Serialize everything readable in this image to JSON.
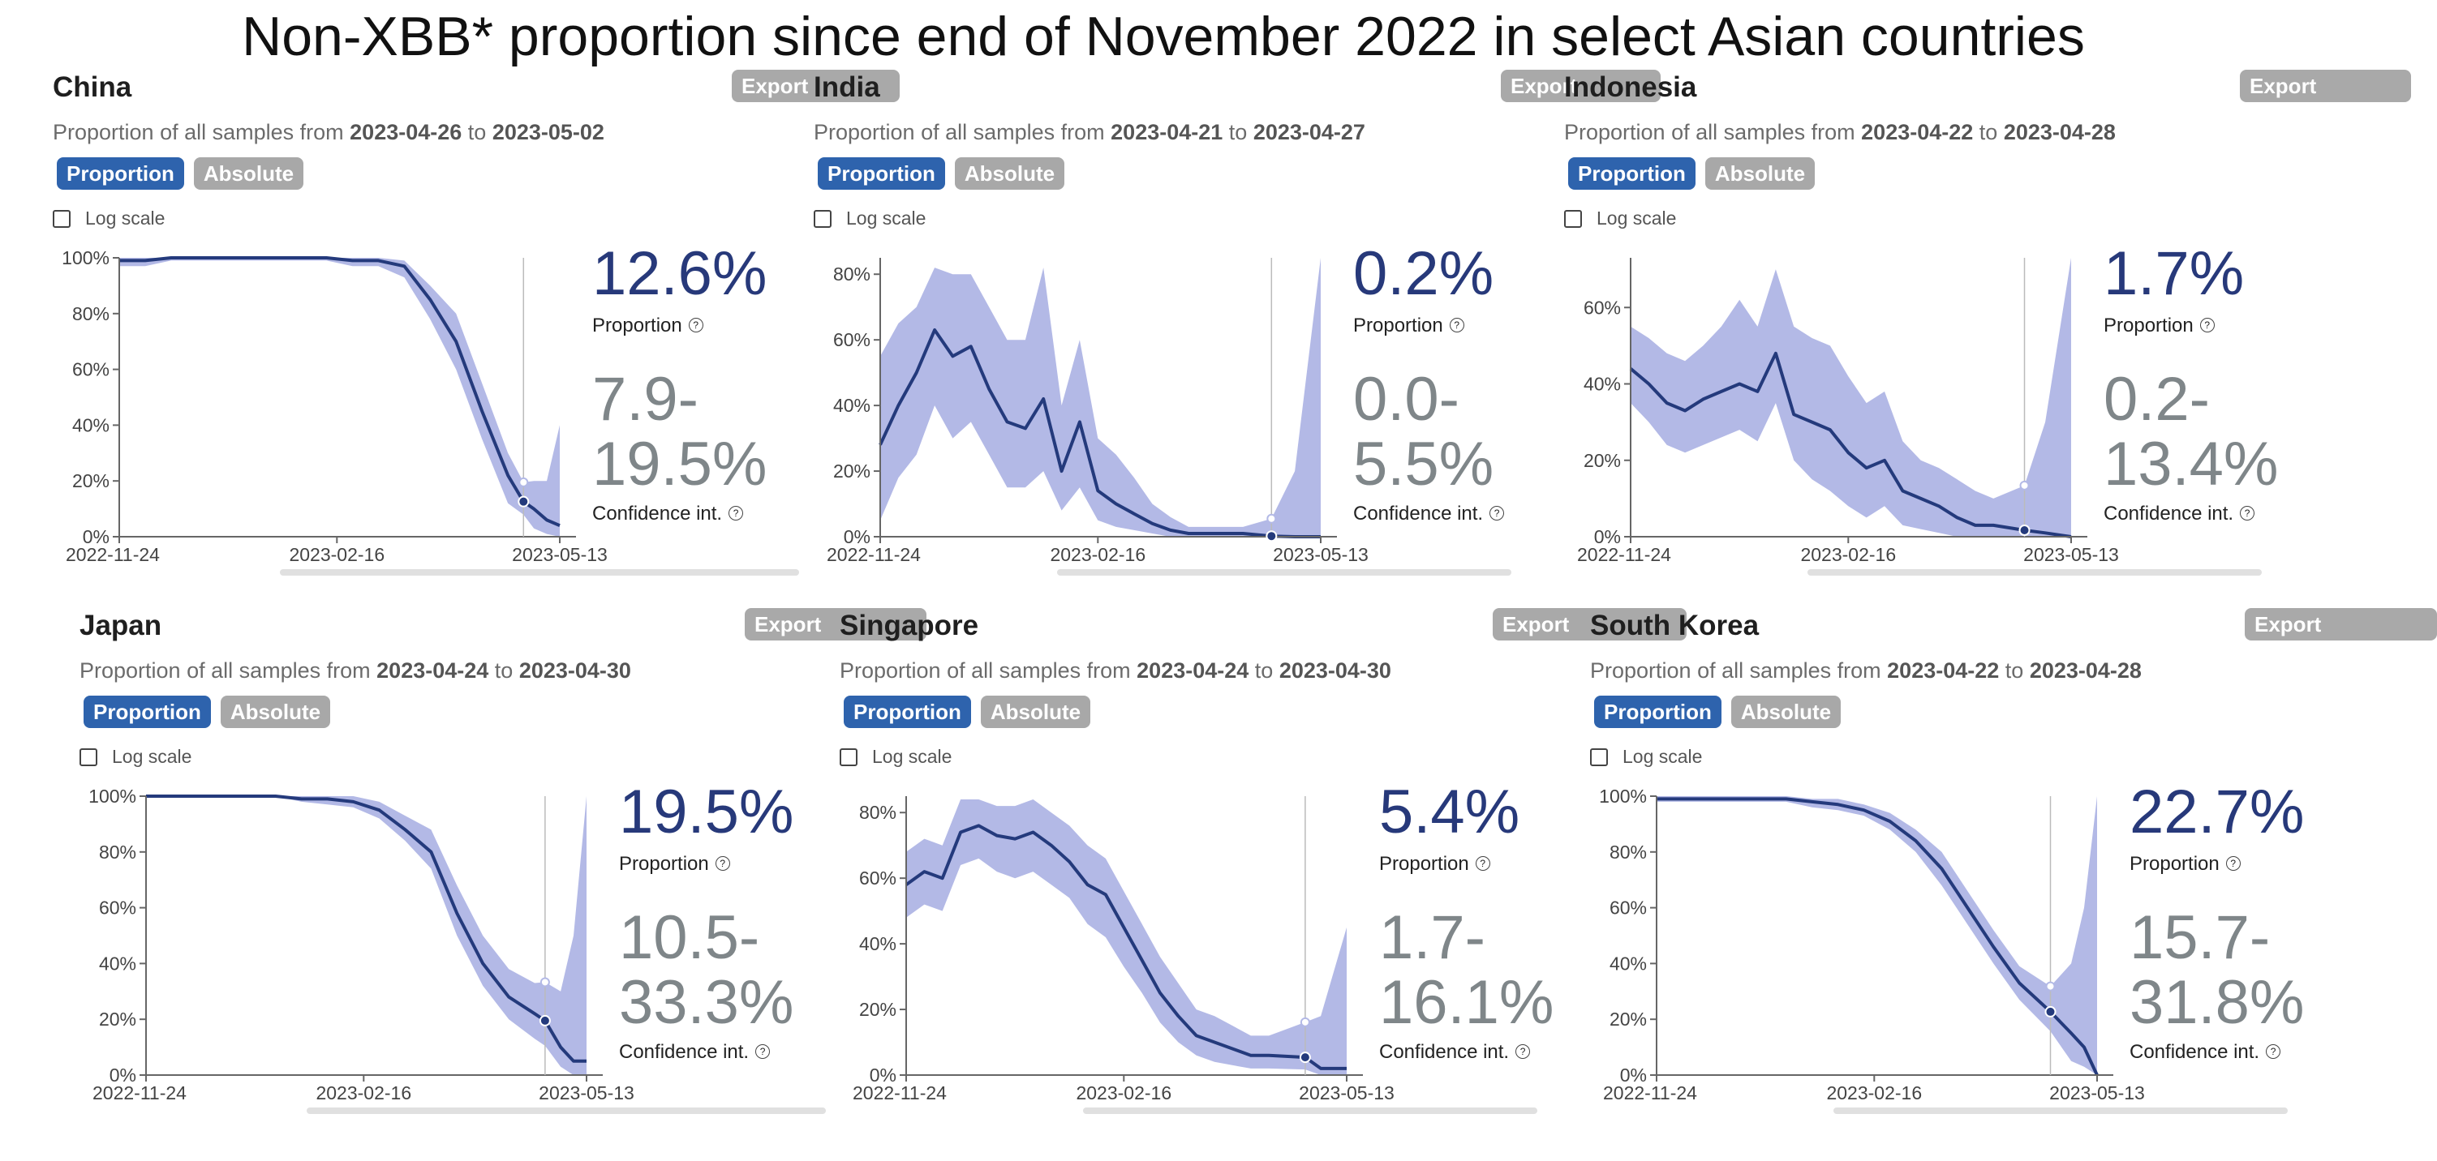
{
  "title": "Non-XBB* proportion since end of November 2022 in select Asian countries",
  "ui": {
    "proportion_btn": "Proportion",
    "absolute_btn": "Absolute",
    "export_btn": "Export",
    "log_scale": "Log scale",
    "date_prefix": "Proportion of all samples from",
    "date_to": "to",
    "proportion_label": "Proportion",
    "ci_label": "Confidence int."
  },
  "chart_data": [
    {
      "type": "line",
      "title": "China",
      "date_from": "2023-04-26",
      "date_to": "2023-05-02",
      "proportion": "12.6%",
      "ci_low": "7.9-",
      "ci_high": "19.5%",
      "ylim": [
        0,
        100
      ],
      "yticks": [
        "0%",
        "20%",
        "40%",
        "60%",
        "80%",
        "100%"
      ],
      "xticks": [
        "2022-11-24",
        "2023-02-16",
        "2023-05-13"
      ],
      "x": [
        "2022-11-24",
        "2022-12-04",
        "2022-12-14",
        "2022-12-24",
        "2023-01-03",
        "2023-01-13",
        "2023-01-23",
        "2023-02-02",
        "2023-02-12",
        "2023-02-22",
        "2023-03-04",
        "2023-03-14",
        "2023-03-24",
        "2023-04-03",
        "2023-04-13",
        "2023-04-23",
        "2023-04-29",
        "2023-05-03",
        "2023-05-08",
        "2023-05-13"
      ],
      "values": [
        99,
        99,
        100,
        100,
        100,
        100,
        100,
        100,
        100,
        99,
        99,
        97,
        85,
        70,
        45,
        22,
        12.6,
        10,
        6,
        4
      ],
      "lower": [
        97,
        97,
        99,
        99,
        99,
        99,
        99,
        99,
        99,
        97,
        97,
        93,
        78,
        60,
        35,
        12,
        7.9,
        3,
        1,
        0
      ],
      "upper": [
        100,
        100,
        100,
        100,
        100,
        100,
        100,
        100,
        100,
        100,
        100,
        99,
        90,
        80,
        55,
        30,
        19.5,
        20,
        20,
        40
      ],
      "marker": "2023-04-29"
    },
    {
      "type": "line",
      "title": "India",
      "date_from": "2023-04-21",
      "date_to": "2023-04-27",
      "proportion": "0.2%",
      "ci_low": "0.0-",
      "ci_high": "5.5%",
      "ylim": [
        0,
        85
      ],
      "yticks": [
        "0%",
        "20%",
        "40%",
        "60%",
        "80%"
      ],
      "xticks": [
        "2022-11-24",
        "2023-02-16",
        "2023-05-13"
      ],
      "x": [
        "2022-11-24",
        "2022-12-01",
        "2022-12-08",
        "2022-12-15",
        "2022-12-22",
        "2022-12-29",
        "2023-01-05",
        "2023-01-12",
        "2023-01-19",
        "2023-01-26",
        "2023-02-02",
        "2023-02-09",
        "2023-02-16",
        "2023-02-23",
        "2023-03-02",
        "2023-03-09",
        "2023-03-16",
        "2023-03-23",
        "2023-03-30",
        "2023-04-06",
        "2023-04-13",
        "2023-04-24",
        "2023-05-03",
        "2023-05-13"
      ],
      "values": [
        28,
        40,
        50,
        63,
        55,
        58,
        45,
        35,
        33,
        42,
        20,
        35,
        14,
        10,
        7,
        4,
        2,
        1,
        1,
        1,
        1,
        0.2,
        0,
        0
      ],
      "lower": [
        5,
        18,
        25,
        40,
        30,
        35,
        25,
        15,
        15,
        20,
        8,
        15,
        5,
        3,
        2,
        1,
        0,
        0,
        0,
        0,
        0,
        0,
        0,
        0
      ],
      "upper": [
        55,
        65,
        70,
        82,
        80,
        80,
        70,
        60,
        60,
        82,
        40,
        60,
        30,
        25,
        18,
        10,
        6,
        3,
        3,
        3,
        3,
        5.5,
        20,
        85
      ],
      "marker": "2023-04-24"
    },
    {
      "type": "line",
      "title": "Indonesia",
      "date_from": "2023-04-22",
      "date_to": "2023-04-28",
      "proportion": "1.7%",
      "ci_low": "0.2-",
      "ci_high": "13.4%",
      "ylim": [
        0,
        73
      ],
      "yticks": [
        "0%",
        "20%",
        "40%",
        "60%"
      ],
      "xticks": [
        "2022-11-24",
        "2023-02-16",
        "2023-05-13"
      ],
      "x": [
        "2022-11-24",
        "2022-12-01",
        "2022-12-08",
        "2022-12-15",
        "2022-12-22",
        "2022-12-29",
        "2023-01-05",
        "2023-01-12",
        "2023-01-19",
        "2023-01-26",
        "2023-02-02",
        "2023-02-09",
        "2023-02-16",
        "2023-02-23",
        "2023-03-02",
        "2023-03-09",
        "2023-03-16",
        "2023-03-23",
        "2023-03-30",
        "2023-04-06",
        "2023-04-13",
        "2023-04-25",
        "2023-05-03",
        "2023-05-13"
      ],
      "values": [
        44,
        40,
        35,
        33,
        36,
        38,
        40,
        38,
        48,
        32,
        30,
        28,
        22,
        18,
        20,
        12,
        10,
        8,
        5,
        3,
        3,
        1.7,
        1,
        0
      ],
      "lower": [
        35,
        30,
        24,
        22,
        24,
        26,
        28,
        25,
        35,
        20,
        15,
        12,
        8,
        5,
        8,
        3,
        2,
        1,
        0,
        0,
        0,
        0.2,
        0,
        0
      ],
      "upper": [
        55,
        52,
        48,
        46,
        50,
        55,
        62,
        55,
        70,
        55,
        52,
        50,
        42,
        35,
        38,
        25,
        20,
        18,
        15,
        12,
        10,
        13.4,
        30,
        73
      ],
      "marker": "2023-04-25"
    },
    {
      "type": "line",
      "title": "Japan",
      "date_from": "2023-04-24",
      "date_to": "2023-04-30",
      "proportion": "19.5%",
      "ci_low": "10.5-",
      "ci_high": "33.3%",
      "ylim": [
        0,
        100
      ],
      "yticks": [
        "0%",
        "20%",
        "40%",
        "60%",
        "80%",
        "100%"
      ],
      "xticks": [
        "2022-11-24",
        "2023-02-16",
        "2023-05-13"
      ],
      "x": [
        "2022-11-24",
        "2022-12-04",
        "2022-12-14",
        "2022-12-24",
        "2023-01-03",
        "2023-01-13",
        "2023-01-23",
        "2023-02-02",
        "2023-02-12",
        "2023-02-22",
        "2023-03-04",
        "2023-03-14",
        "2023-03-24",
        "2023-04-03",
        "2023-04-13",
        "2023-04-23",
        "2023-04-27",
        "2023-05-03",
        "2023-05-08",
        "2023-05-13"
      ],
      "values": [
        100,
        100,
        100,
        100,
        100,
        100,
        99,
        99,
        98,
        95,
        88,
        80,
        58,
        40,
        28,
        22,
        19.5,
        10,
        5,
        5
      ],
      "lower": [
        100,
        100,
        100,
        100,
        100,
        100,
        98,
        97,
        96,
        92,
        84,
        74,
        50,
        32,
        20,
        13,
        10.5,
        3,
        0,
        0
      ],
      "upper": [
        100,
        100,
        100,
        100,
        100,
        100,
        100,
        100,
        100,
        98,
        93,
        88,
        68,
        50,
        38,
        33,
        33.3,
        30,
        50,
        100
      ],
      "marker": "2023-04-27"
    },
    {
      "type": "line",
      "title": "Singapore",
      "date_from": "2023-04-24",
      "date_to": "2023-04-30",
      "proportion": "5.4%",
      "ci_low": "1.7-",
      "ci_high": "16.1%",
      "ylim": [
        0,
        85
      ],
      "yticks": [
        "0%",
        "20%",
        "40%",
        "60%",
        "80%"
      ],
      "xticks": [
        "2022-11-24",
        "2023-02-16",
        "2023-05-13"
      ],
      "x": [
        "2022-11-24",
        "2022-12-01",
        "2022-12-08",
        "2022-12-15",
        "2022-12-22",
        "2022-12-29",
        "2023-01-05",
        "2023-01-12",
        "2023-01-19",
        "2023-01-26",
        "2023-02-02",
        "2023-02-09",
        "2023-02-16",
        "2023-02-23",
        "2023-03-02",
        "2023-03-09",
        "2023-03-16",
        "2023-03-23",
        "2023-03-30",
        "2023-04-06",
        "2023-04-13",
        "2023-04-27",
        "2023-05-03",
        "2023-05-13"
      ],
      "values": [
        58,
        62,
        60,
        74,
        76,
        73,
        72,
        74,
        70,
        65,
        58,
        55,
        45,
        35,
        25,
        18,
        12,
        10,
        8,
        6,
        6,
        5.4,
        2,
        2
      ],
      "lower": [
        48,
        52,
        50,
        64,
        66,
        62,
        60,
        62,
        58,
        54,
        46,
        42,
        33,
        25,
        16,
        10,
        6,
        4,
        3,
        2,
        2,
        1.7,
        0,
        0
      ],
      "upper": [
        68,
        72,
        70,
        84,
        84,
        82,
        82,
        84,
        80,
        76,
        70,
        66,
        56,
        46,
        36,
        28,
        20,
        18,
        15,
        12,
        12,
        16.1,
        18,
        45
      ],
      "marker": "2023-04-27"
    },
    {
      "type": "line",
      "title": "South Korea",
      "date_from": "2023-04-22",
      "date_to": "2023-04-28",
      "proportion": "22.7%",
      "ci_low": "15.7-",
      "ci_high": "31.8%",
      "ylim": [
        0,
        100
      ],
      "yticks": [
        "0%",
        "20%",
        "40%",
        "60%",
        "80%",
        "100%"
      ],
      "xticks": [
        "2022-11-24",
        "2023-02-16",
        "2023-05-13"
      ],
      "x": [
        "2022-11-24",
        "2022-12-04",
        "2022-12-14",
        "2022-12-24",
        "2023-01-03",
        "2023-01-13",
        "2023-01-23",
        "2023-02-02",
        "2023-02-12",
        "2023-02-22",
        "2023-03-04",
        "2023-03-14",
        "2023-03-24",
        "2023-04-03",
        "2023-04-13",
        "2023-04-25",
        "2023-05-03",
        "2023-05-08",
        "2023-05-13"
      ],
      "values": [
        99,
        99,
        99,
        99,
        99,
        99,
        98,
        97,
        95,
        91,
        84,
        74,
        60,
        46,
        33,
        22.7,
        15,
        10,
        0
      ],
      "lower": [
        98,
        98,
        98,
        98,
        98,
        98,
        96,
        95,
        93,
        88,
        80,
        68,
        54,
        40,
        27,
        15.7,
        5,
        3,
        0
      ],
      "upper": [
        100,
        100,
        100,
        100,
        100,
        100,
        99,
        99,
        97,
        94,
        88,
        80,
        66,
        52,
        39,
        31.8,
        40,
        60,
        100
      ],
      "marker": "2023-04-25"
    }
  ]
}
